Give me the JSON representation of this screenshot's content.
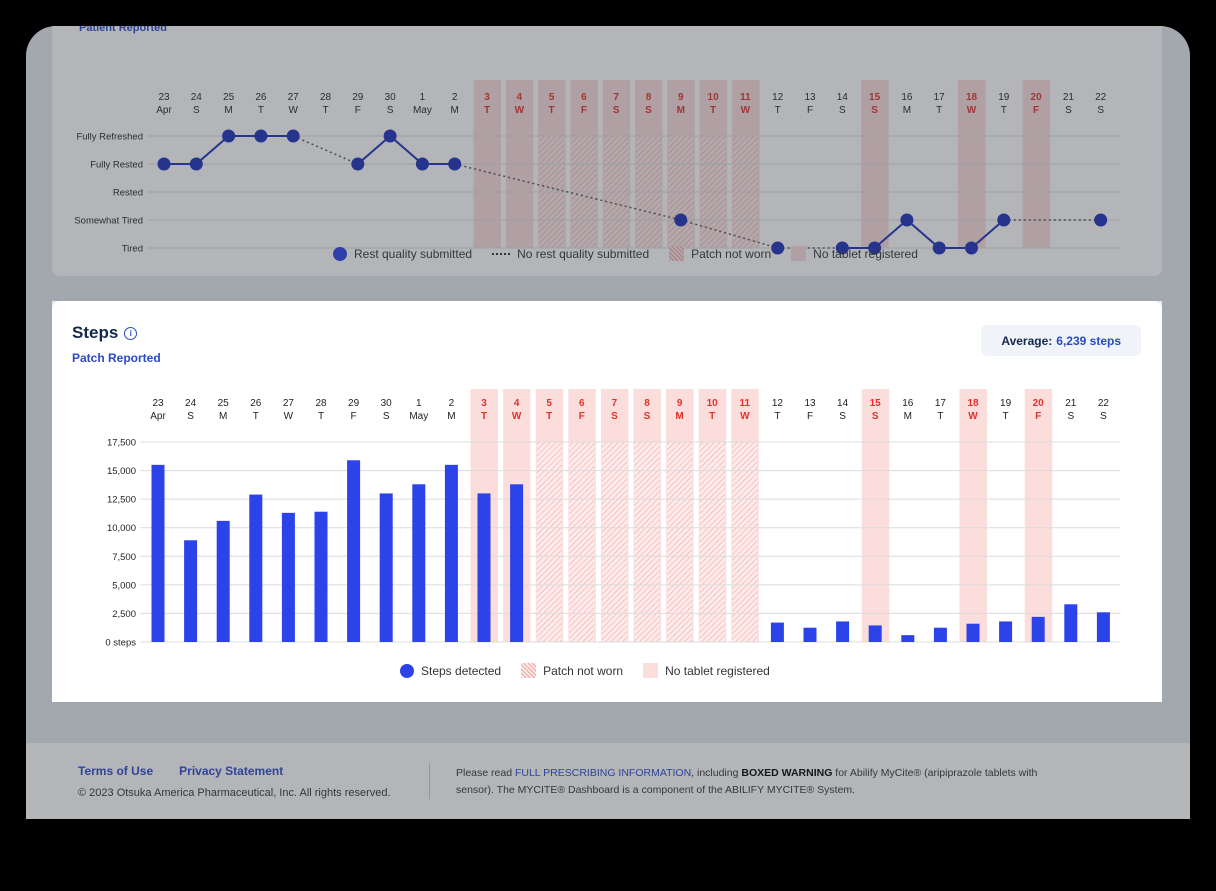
{
  "days": [
    {
      "d": "23",
      "w": "Apr",
      "red": false
    },
    {
      "d": "24",
      "w": "S",
      "red": false
    },
    {
      "d": "25",
      "w": "M",
      "red": false
    },
    {
      "d": "26",
      "w": "T",
      "red": false
    },
    {
      "d": "27",
      "w": "W",
      "red": false
    },
    {
      "d": "28",
      "w": "T",
      "red": false
    },
    {
      "d": "29",
      "w": "F",
      "red": false
    },
    {
      "d": "30",
      "w": "S",
      "red": false
    },
    {
      "d": "1",
      "w": "May",
      "red": false
    },
    {
      "d": "2",
      "w": "M",
      "red": false
    },
    {
      "d": "3",
      "w": "T",
      "red": true
    },
    {
      "d": "4",
      "w": "W",
      "red": true
    },
    {
      "d": "5",
      "w": "T",
      "red": true
    },
    {
      "d": "6",
      "w": "F",
      "red": true
    },
    {
      "d": "7",
      "w": "S",
      "red": true
    },
    {
      "d": "8",
      "w": "S",
      "red": true
    },
    {
      "d": "9",
      "w": "M",
      "red": true
    },
    {
      "d": "10",
      "w": "T",
      "red": true
    },
    {
      "d": "11",
      "w": "W",
      "red": true
    },
    {
      "d": "12",
      "w": "T",
      "red": false
    },
    {
      "d": "13",
      "w": "F",
      "red": false
    },
    {
      "d": "14",
      "w": "S",
      "red": false
    },
    {
      "d": "15",
      "w": "S",
      "red": true
    },
    {
      "d": "16",
      "w": "M",
      "red": false
    },
    {
      "d": "17",
      "w": "T",
      "red": false
    },
    {
      "d": "18",
      "w": "W",
      "red": true
    },
    {
      "d": "19",
      "w": "T",
      "red": false
    },
    {
      "d": "20",
      "w": "F",
      "red": true
    },
    {
      "d": "21",
      "w": "S",
      "red": false
    },
    {
      "d": "22",
      "w": "S",
      "red": false
    }
  ],
  "rest": {
    "subtitle": "Patient Reported",
    "levels": [
      "Fully Refreshed",
      "Fully Rested",
      "Rested",
      "Somewhat Tired",
      "Tired"
    ],
    "values": [
      1,
      1,
      0,
      0,
      0,
      null,
      1,
      0,
      1,
      1,
      null,
      null,
      null,
      null,
      null,
      null,
      3,
      null,
      null,
      4,
      null,
      4,
      4,
      3,
      4,
      4,
      3,
      null,
      null,
      3
    ],
    "no_tablet_days": [
      10,
      11,
      12,
      13,
      14,
      15,
      16,
      17,
      18,
      22,
      25,
      27
    ],
    "patch_not_worn_days": [
      12,
      13,
      14,
      15,
      16,
      17,
      18
    ],
    "legend": {
      "submitted": "Rest quality submitted",
      "not_submitted": "No rest quality submitted",
      "patch": "Patch not worn",
      "tablet": "No tablet registered"
    }
  },
  "steps": {
    "title": "Steps",
    "subtitle": "Patch Reported",
    "average_label": "Average:",
    "average_value": "6,239 steps",
    "legend": {
      "detected": "Steps detected",
      "patch": "Patch not worn",
      "tablet": "No tablet registered"
    }
  },
  "chart_data": {
    "type": "bar",
    "title": "Steps",
    "categories": [
      "23 Apr",
      "24",
      "25",
      "26",
      "27",
      "28",
      "29",
      "30",
      "1 May",
      "2",
      "3",
      "4",
      "5",
      "6",
      "7",
      "8",
      "9",
      "10",
      "11",
      "12",
      "13",
      "14",
      "15",
      "16",
      "17",
      "18",
      "19",
      "20",
      "21",
      "22"
    ],
    "values": [
      15500,
      8900,
      10600,
      12900,
      11300,
      11400,
      15900,
      13000,
      13800,
      15500,
      13000,
      13800,
      null,
      null,
      null,
      null,
      null,
      null,
      null,
      1700,
      1250,
      1800,
      1450,
      600,
      1250,
      1600,
      1800,
      2200,
      3300,
      2600
    ],
    "ylim": [
      0,
      17500
    ],
    "yticks": [
      "0 steps",
      "2,500",
      "5,000",
      "7,500",
      "10,000",
      "12,500",
      "15,000",
      "17,500"
    ],
    "grid": true,
    "no_tablet_days": [
      10,
      11,
      12,
      13,
      14,
      15,
      16,
      17,
      18,
      22,
      25,
      27
    ],
    "patch_not_worn_days": [
      12,
      13,
      14,
      15,
      16,
      17,
      18
    ],
    "colors": {
      "bar": "#2b43e8",
      "tablet": "#fbdedb",
      "hatch": "#f2a6a1",
      "red_label": "#e0312b"
    }
  },
  "footer": {
    "terms": "Terms of Use",
    "privacy": "Privacy Statement",
    "copyright": "© 2023 Otsuka America Pharmaceutical, Inc. All rights reserved.",
    "text_before": "Please read ",
    "link": "FULL PRESCRIBING INFORMATION",
    "text_mid": ", including ",
    "bold": "BOXED WARNING",
    "text_after": " for Abilify MyCite® (aripiprazole tablets with sensor). The MYCITE® Dashboard is a component of the ABILIFY MYCITE® System."
  }
}
